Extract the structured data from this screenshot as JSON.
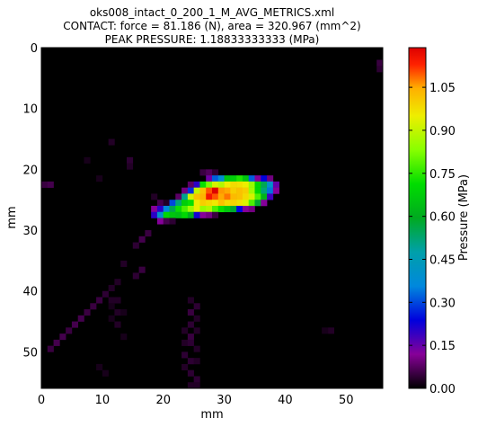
{
  "chart_data": {
    "type": "heatmap",
    "title": [
      "oks008_intact_0_200_1_M_AVG_METRICS.xml",
      "CONTACT: force = 81.186 (N), area = 320.967 (mm^2)",
      "PEAK PRESSURE: 1.18833333333 (MPa)"
    ],
    "xlabel": "mm",
    "ylabel": "mm",
    "xlim": [
      0,
      56
    ],
    "ylim": [
      56,
      0
    ],
    "x_ticks": [
      0,
      10,
      20,
      30,
      40,
      50
    ],
    "y_ticks": [
      0,
      10,
      20,
      30,
      40,
      50
    ],
    "colorbar": {
      "label": "Pressure (MPa)",
      "range": [
        0.0,
        1.1883
      ],
      "ticks": [
        "0.00",
        "0.15",
        "0.30",
        "0.45",
        "0.60",
        "0.75",
        "0.90",
        "1.05"
      ],
      "colormap": "nipy_spectral"
    },
    "grid": false,
    "cells": [
      [
        0,
        22,
        0.05
      ],
      [
        1,
        22,
        0.06
      ],
      [
        7,
        18,
        0.02
      ],
      [
        11,
        15,
        0.03
      ],
      [
        14,
        18,
        0.04
      ],
      [
        14,
        19,
        0.03
      ],
      [
        9,
        21,
        0.02
      ],
      [
        18,
        24,
        0.03
      ],
      [
        19,
        25,
        0.06
      ],
      [
        20,
        25,
        0.03
      ],
      [
        26,
        20,
        0.05
      ],
      [
        27,
        20,
        0.07
      ],
      [
        28,
        20,
        0.04
      ],
      [
        55,
        2,
        0.05
      ],
      [
        55,
        3,
        0.04
      ],
      [
        27,
        21,
        0.14
      ],
      [
        28,
        21,
        0.32
      ],
      [
        29,
        21,
        0.38
      ],
      [
        30,
        21,
        0.66
      ],
      [
        31,
        21,
        0.68
      ],
      [
        32,
        21,
        0.74
      ],
      [
        33,
        21,
        0.66
      ],
      [
        34,
        21,
        0.32
      ],
      [
        35,
        21,
        0.12
      ],
      [
        36,
        21,
        0.24
      ],
      [
        37,
        21,
        0.1
      ],
      [
        24,
        22,
        0.08
      ],
      [
        25,
        22,
        0.2
      ],
      [
        26,
        22,
        0.72
      ],
      [
        27,
        22,
        0.82
      ],
      [
        28,
        22,
        0.92
      ],
      [
        29,
        22,
        0.88
      ],
      [
        30,
        22,
        0.95
      ],
      [
        31,
        22,
        0.98
      ],
      [
        32,
        22,
        0.97
      ],
      [
        33,
        22,
        0.95
      ],
      [
        34,
        22,
        0.85
      ],
      [
        35,
        22,
        0.7
      ],
      [
        36,
        22,
        0.55
      ],
      [
        37,
        22,
        0.4
      ],
      [
        38,
        22,
        0.15
      ],
      [
        23,
        23,
        0.1
      ],
      [
        24,
        23,
        0.28
      ],
      [
        25,
        23,
        0.9
      ],
      [
        26,
        23,
        1.02
      ],
      [
        27,
        23,
        1.1
      ],
      [
        28,
        23,
        1.19
      ],
      [
        29,
        23,
        1.06
      ],
      [
        30,
        23,
        1.05
      ],
      [
        31,
        23,
        1.0
      ],
      [
        32,
        23,
        1.02
      ],
      [
        33,
        23,
        1.0
      ],
      [
        34,
        23,
        0.86
      ],
      [
        35,
        23,
        0.7
      ],
      [
        36,
        23,
        0.52
      ],
      [
        37,
        23,
        0.34
      ],
      [
        38,
        23,
        0.12
      ],
      [
        22,
        24,
        0.08
      ],
      [
        23,
        24,
        0.5
      ],
      [
        24,
        24,
        0.92
      ],
      [
        25,
        24,
        1.02
      ],
      [
        26,
        24,
        1.04
      ],
      [
        27,
        24,
        1.15
      ],
      [
        28,
        24,
        1.1
      ],
      [
        29,
        24,
        1.05
      ],
      [
        30,
        24,
        1.08
      ],
      [
        31,
        24,
        1.03
      ],
      [
        32,
        24,
        1.02
      ],
      [
        33,
        24,
        0.98
      ],
      [
        34,
        24,
        0.92
      ],
      [
        35,
        24,
        0.78
      ],
      [
        36,
        24,
        0.62
      ],
      [
        37,
        24,
        0.18
      ],
      [
        21,
        25,
        0.3
      ],
      [
        22,
        25,
        0.52
      ],
      [
        23,
        25,
        0.68
      ],
      [
        24,
        25,
        0.72
      ],
      [
        25,
        25,
        0.95
      ],
      [
        26,
        25,
        1.0
      ],
      [
        27,
        25,
        0.98
      ],
      [
        28,
        25,
        0.96
      ],
      [
        29,
        25,
        1.02
      ],
      [
        30,
        25,
        0.98
      ],
      [
        31,
        25,
        0.99
      ],
      [
        32,
        25,
        0.97
      ],
      [
        33,
        25,
        0.93
      ],
      [
        34,
        25,
        0.78
      ],
      [
        35,
        25,
        0.58
      ],
      [
        36,
        25,
        0.12
      ],
      [
        18,
        26,
        0.12
      ],
      [
        19,
        26,
        0.2
      ],
      [
        20,
        26,
        0.36
      ],
      [
        21,
        26,
        0.55
      ],
      [
        22,
        26,
        0.72
      ],
      [
        23,
        26,
        0.78
      ],
      [
        24,
        26,
        0.86
      ],
      [
        25,
        26,
        0.95
      ],
      [
        26,
        26,
        0.85
      ],
      [
        27,
        26,
        0.88
      ],
      [
        28,
        26,
        0.78
      ],
      [
        29,
        26,
        0.72
      ],
      [
        30,
        26,
        0.66
      ],
      [
        31,
        26,
        0.58
      ],
      [
        32,
        26,
        0.24
      ],
      [
        33,
        26,
        0.12
      ],
      [
        34,
        26,
        0.1
      ],
      [
        18,
        27,
        0.2
      ],
      [
        19,
        27,
        0.4
      ],
      [
        20,
        27,
        0.7
      ],
      [
        21,
        27,
        0.66
      ],
      [
        22,
        27,
        0.64
      ],
      [
        23,
        27,
        0.7
      ],
      [
        24,
        27,
        0.6
      ],
      [
        25,
        27,
        0.22
      ],
      [
        26,
        27,
        0.12
      ],
      [
        27,
        27,
        0.1
      ],
      [
        28,
        27,
        0.05
      ],
      [
        19,
        28,
        0.12
      ],
      [
        20,
        28,
        0.06
      ],
      [
        21,
        28,
        0.04
      ],
      [
        17,
        30,
        0.05
      ],
      [
        16,
        31,
        0.06
      ],
      [
        15,
        32,
        0.04
      ],
      [
        13,
        35,
        0.03
      ],
      [
        16,
        36,
        0.05
      ],
      [
        15,
        37,
        0.04
      ],
      [
        12,
        38,
        0.03
      ],
      [
        11,
        39,
        0.03
      ],
      [
        10,
        40,
        0.04
      ],
      [
        9,
        41,
        0.05
      ],
      [
        8,
        42,
        0.05
      ],
      [
        7,
        43,
        0.05
      ],
      [
        6,
        44,
        0.06
      ],
      [
        5,
        45,
        0.06
      ],
      [
        4,
        46,
        0.05
      ],
      [
        3,
        47,
        0.06
      ],
      [
        2,
        48,
        0.06
      ],
      [
        1,
        49,
        0.05
      ],
      [
        11,
        41,
        0.03
      ],
      [
        12,
        41,
        0.03
      ],
      [
        11,
        42,
        0.02
      ],
      [
        12,
        43,
        0.03
      ],
      [
        11,
        44,
        0.02
      ],
      [
        12,
        45,
        0.03
      ],
      [
        13,
        43,
        0.02
      ],
      [
        24,
        41,
        0.03
      ],
      [
        25,
        42,
        0.04
      ],
      [
        24,
        43,
        0.05
      ],
      [
        25,
        44,
        0.03
      ],
      [
        24,
        45,
        0.04
      ],
      [
        23,
        46,
        0.03
      ],
      [
        25,
        46,
        0.03
      ],
      [
        24,
        47,
        0.05
      ],
      [
        23,
        48,
        0.03
      ],
      [
        24,
        48,
        0.04
      ],
      [
        25,
        49,
        0.03
      ],
      [
        23,
        50,
        0.04
      ],
      [
        24,
        51,
        0.04
      ],
      [
        25,
        51,
        0.03
      ],
      [
        23,
        52,
        0.03
      ],
      [
        24,
        53,
        0.04
      ],
      [
        25,
        54,
        0.04
      ],
      [
        24,
        55,
        0.03
      ],
      [
        25,
        55,
        0.03
      ],
      [
        47,
        46,
        0.03
      ],
      [
        46,
        46,
        0.02
      ],
      [
        13,
        47,
        0.02
      ],
      [
        9,
        52,
        0.02
      ],
      [
        10,
        53,
        0.02
      ]
    ]
  }
}
